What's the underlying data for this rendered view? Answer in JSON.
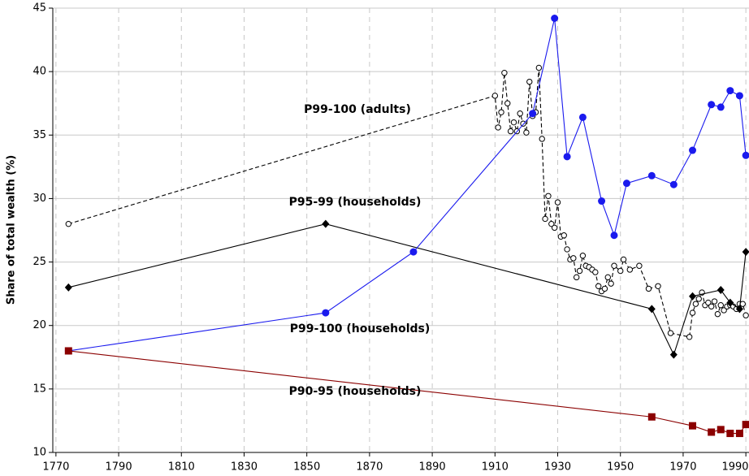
{
  "chart_data": {
    "type": "line",
    "y_label": "Share of total wealth (%)",
    "xlim": [
      1769,
      1991
    ],
    "xticks": [
      1770,
      1790,
      1810,
      1830,
      1850,
      1870,
      1890,
      1910,
      1930,
      1950,
      1970,
      1990
    ],
    "ylim": [
      10,
      45
    ],
    "yticks": [
      10,
      15,
      20,
      25,
      30,
      35,
      40,
      45
    ],
    "grid": true,
    "series": [
      {
        "name": "P99-100 (adults)",
        "color": "#000000",
        "marker": "open-circle",
        "dashed": true,
        "x": [
          1774,
          1910,
          1911,
          1912,
          1913,
          1914,
          1915,
          1916,
          1917,
          1918,
          1919,
          1920,
          1921,
          1922,
          1923,
          1924,
          1925,
          1926,
          1927,
          1928,
          1929,
          1930,
          1931,
          1932,
          1933,
          1934,
          1935,
          1936,
          1937,
          1938,
          1939,
          1940,
          1941,
          1942,
          1943,
          1944,
          1945,
          1946,
          1947,
          1948,
          1950,
          1951,
          1953,
          1956,
          1959,
          1962,
          1966,
          1972,
          1973,
          1974,
          1975,
          1976,
          1977,
          1978,
          1979,
          1980,
          1981,
          1982,
          1983,
          1984,
          1985,
          1986,
          1987,
          1988,
          1989,
          1990
        ],
        "values": [
          28,
          38.1,
          35.6,
          36.8,
          39.9,
          37.5,
          35.3,
          36.0,
          35.3,
          36.7,
          35.9,
          35.2,
          39.2,
          36.5,
          36.8,
          40.3,
          34.7,
          28.4,
          30.2,
          28.0,
          27.7,
          29.7,
          27.0,
          27.1,
          26.0,
          25.2,
          25.3,
          23.8,
          24.3,
          25.5,
          24.7,
          24.6,
          24.4,
          24.2,
          23.1,
          22.7,
          22.9,
          23.8,
          23.3,
          24.7,
          24.3,
          25.2,
          24.4,
          24.7,
          22.9,
          23.1,
          19.4,
          19.1,
          21.0,
          21.7,
          22.1,
          22.6,
          21.6,
          21.8,
          21.5,
          21.9,
          20.9,
          21.6,
          21.2,
          21.5,
          21.6,
          21.5,
          21.3,
          21.7,
          21.7,
          20.8
        ]
      },
      {
        "name": "P95-99 (households)",
        "color": "#000000",
        "marker": "diamond",
        "x": [
          1774,
          1856,
          1960,
          1967,
          1973,
          1982,
          1985,
          1988,
          1990
        ],
        "values": [
          23,
          28,
          21.3,
          17.7,
          22.3,
          22.8,
          21.8,
          21.3,
          25.8
        ]
      },
      {
        "name": "P99-100 (households)",
        "color": "#1a1aee",
        "marker": "circle",
        "x": [
          1774,
          1856,
          1884,
          1922,
          1929,
          1933,
          1938,
          1944,
          1948,
          1952,
          1960,
          1967,
          1973,
          1979,
          1982,
          1985,
          1988,
          1990
        ],
        "values": [
          18,
          21,
          25.8,
          36.7,
          44.2,
          33.3,
          36.4,
          29.8,
          27.1,
          31.2,
          31.8,
          31.1,
          33.8,
          37.4,
          37.2,
          38.5,
          38.1,
          33.4
        ]
      },
      {
        "name": "P90-95 (households)",
        "color": "#8b0000",
        "marker": "square",
        "x": [
          1774,
          1960,
          1973,
          1979,
          1982,
          1985,
          1988,
          1990
        ],
        "values": [
          18,
          12.8,
          12.1,
          11.6,
          11.8,
          11.5,
          11.5,
          12.2
        ]
      }
    ]
  }
}
